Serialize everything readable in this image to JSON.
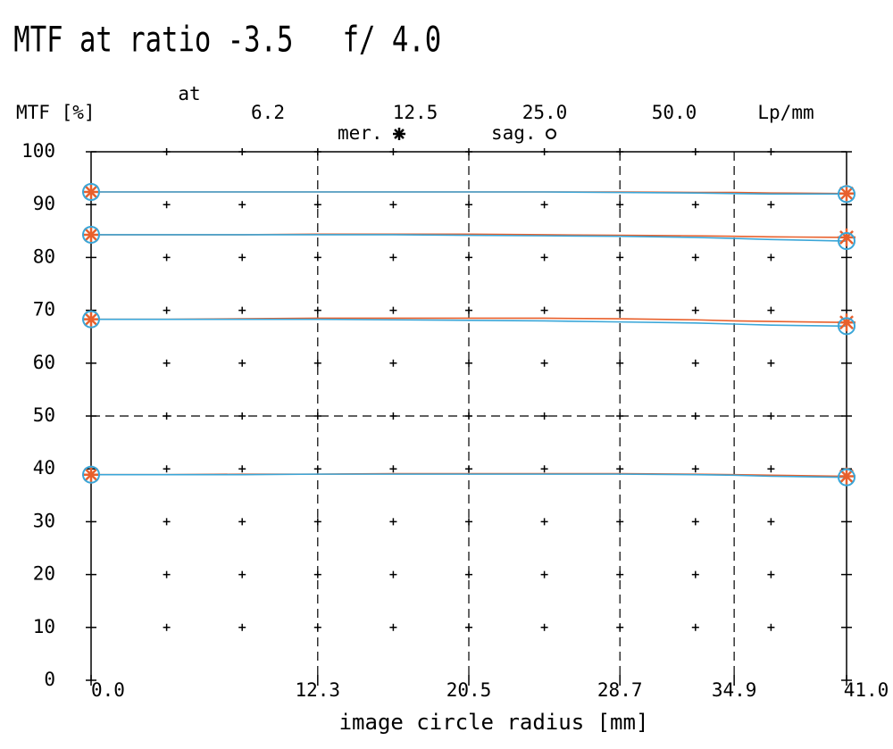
{
  "chart_data": {
    "type": "line",
    "title": "MTF at ratio -3.5   f/ 4.0",
    "y_label": "MTF [%]",
    "x_label": "image circle radius [mm]",
    "frequency_prefix": "at",
    "frequency_labels": [
      "6.2",
      "12.5",
      "25.0",
      "50.0"
    ],
    "frequency_unit": "Lp/mm",
    "x": [
      0,
      4.1,
      8.2,
      12.3,
      16.4,
      20.5,
      24.6,
      28.7,
      32.8,
      34.9,
      36.9,
      41
    ],
    "series": [
      {
        "name": "mer.",
        "color": "#e8602c",
        "marker": "asterisk",
        "values": [
          92.4,
          92.4,
          92.4,
          92.4,
          92.4,
          92.4,
          92.4,
          92.4,
          92.3,
          92.3,
          92.2,
          92.1
        ]
      },
      {
        "name": "sag.",
        "color": "#3aa6d8",
        "marker": "circle",
        "values": [
          92.4,
          92.4,
          92.4,
          92.4,
          92.4,
          92.4,
          92.4,
          92.3,
          92.2,
          92.1,
          92.0,
          92.0
        ]
      },
      {
        "name": "mer.",
        "color": "#e8602c",
        "marker": "asterisk",
        "values": [
          84.3,
          84.3,
          84.3,
          84.4,
          84.4,
          84.4,
          84.3,
          84.2,
          84.1,
          84.0,
          83.9,
          83.8
        ]
      },
      {
        "name": "sag.",
        "color": "#3aa6d8",
        "marker": "circle",
        "values": [
          84.3,
          84.3,
          84.3,
          84.3,
          84.3,
          84.2,
          84.1,
          84.0,
          83.8,
          83.6,
          83.4,
          83.1
        ]
      },
      {
        "name": "mer.",
        "color": "#e8602c",
        "marker": "asterisk",
        "values": [
          68.3,
          68.3,
          68.4,
          68.5,
          68.5,
          68.5,
          68.5,
          68.4,
          68.2,
          68.0,
          67.9,
          67.7
        ]
      },
      {
        "name": "sag.",
        "color": "#3aa6d8",
        "marker": "circle",
        "values": [
          68.3,
          68.3,
          68.3,
          68.3,
          68.2,
          68.1,
          68.0,
          67.8,
          67.6,
          67.4,
          67.2,
          67.0
        ]
      },
      {
        "name": "mer.",
        "color": "#e8602c",
        "marker": "asterisk",
        "values": [
          38.9,
          38.9,
          39.0,
          39.0,
          39.1,
          39.1,
          39.1,
          39.1,
          39.0,
          38.9,
          38.8,
          38.6
        ]
      },
      {
        "name": "sag.",
        "color": "#3aa6d8",
        "marker": "circle",
        "values": [
          38.9,
          38.9,
          38.9,
          39.0,
          39.0,
          39.0,
          39.0,
          39.0,
          38.9,
          38.8,
          38.6,
          38.4
        ]
      }
    ],
    "xlim": [
      0,
      41
    ],
    "xticks": [
      {
        "value": 0,
        "label": "0.0"
      },
      12.3,
      20.5,
      28.7,
      34.9,
      {
        "value": 41,
        "label": "41.0"
      }
    ],
    "ylim": [
      0,
      100
    ],
    "yticks": [
      0,
      10,
      20,
      30,
      40,
      50,
      60,
      70,
      80,
      90,
      100
    ],
    "grid": true
  }
}
